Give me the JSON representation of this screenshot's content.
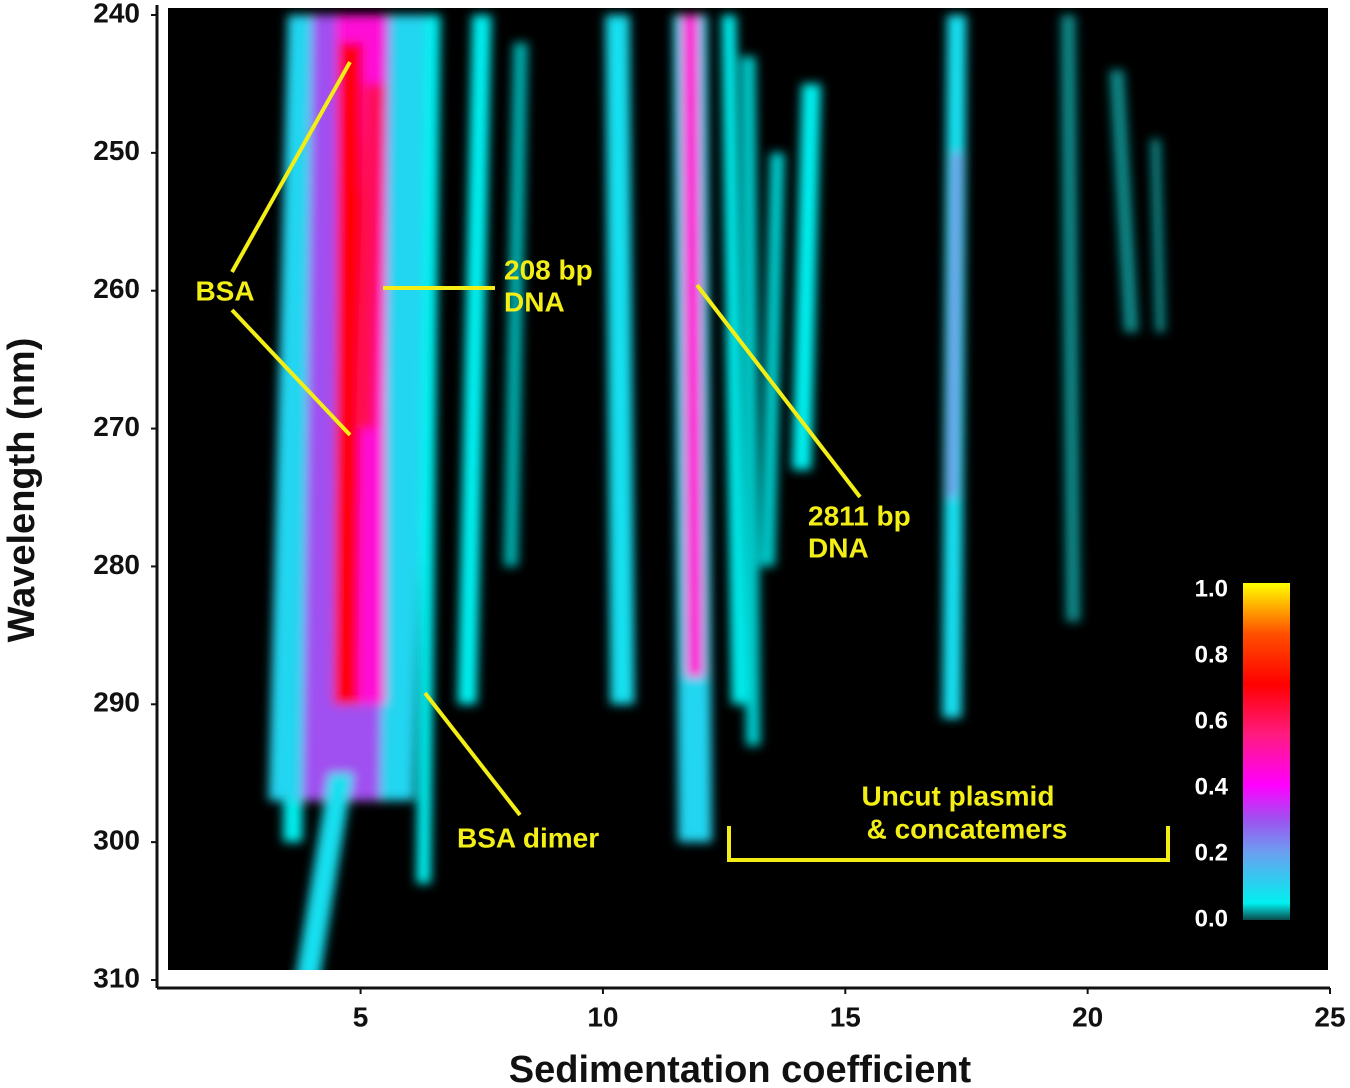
{
  "chart_data": {
    "type": "heatmap",
    "xlabel": "Sedimentation coefficient",
    "ylabel": "Wavelength (nm)",
    "xlim": [
      0.8,
      25
    ],
    "ylim": [
      240,
      310
    ],
    "xticks": [
      5,
      10,
      15,
      20,
      25
    ],
    "yticks": [
      240,
      250,
      260,
      270,
      280,
      290,
      300,
      310
    ],
    "colorbar": {
      "lim": [
        0,
        1
      ],
      "ticks": [
        {
          "value": 0,
          "label": "0.0"
        },
        0.2,
        0.4,
        0.6,
        0.8,
        {
          "value": 1,
          "label": "1.0"
        }
      ],
      "colorscale": [
        [
          0,
          "#0b4a4a"
        ],
        [
          0.05,
          "#00f0f0"
        ],
        [
          0.2,
          "#6aa0f0"
        ],
        [
          0.3,
          "#a050f0"
        ],
        [
          0.4,
          "#ff00ff"
        ],
        [
          0.55,
          "#ff1a80"
        ],
        [
          0.7,
          "#ff0000"
        ],
        [
          0.85,
          "#ff5000"
        ],
        [
          1,
          "#ffff00"
        ]
      ]
    },
    "streaks": [
      {
        "x": [
          3.7,
          3.6
        ],
        "y": [
          240,
          300
        ],
        "width": 0.4,
        "value": 0.05
      },
      {
        "x": [
          5.0,
          4.6
        ],
        "y": [
          240,
          297
        ],
        "width": 3.0,
        "value": 0.1
      },
      {
        "x": [
          4.8,
          4.6
        ],
        "y": [
          240,
          297
        ],
        "width": 1.6,
        "value": 0.3
      },
      {
        "x": [
          5.0,
          5.0
        ],
        "y": [
          240,
          290
        ],
        "width": 1.0,
        "value": 0.45
      },
      {
        "x": [
          4.8,
          4.7
        ],
        "y": [
          242,
          290
        ],
        "width": 0.5,
        "value": 0.7
      },
      {
        "x": [
          5.3,
          5.1
        ],
        "y": [
          245,
          270
        ],
        "width": 0.4,
        "value": 0.6
      },
      {
        "x": [
          4.6,
          3.9
        ],
        "y": [
          295,
          310
        ],
        "width": 0.5,
        "value": 0.08
      },
      {
        "x": [
          6.5,
          6.3
        ],
        "y": [
          240,
          303
        ],
        "width": 0.3,
        "value": 0.05
      },
      {
        "x": [
          7.5,
          7.2
        ],
        "y": [
          240,
          290
        ],
        "width": 0.4,
        "value": 0.05
      },
      {
        "x": [
          8.3,
          8.1
        ],
        "y": [
          242,
          280
        ],
        "width": 0.3,
        "value": 0.03
      },
      {
        "x": [
          10.3,
          10.4
        ],
        "y": [
          240,
          290
        ],
        "width": 0.5,
        "value": 0.08
      },
      {
        "x": [
          11.8,
          11.9
        ],
        "y": [
          240,
          300
        ],
        "width": 0.7,
        "value": 0.1
      },
      {
        "x": [
          11.8,
          11.9
        ],
        "y": [
          240,
          288
        ],
        "width": 0.35,
        "value": 0.45
      },
      {
        "x": [
          12.6,
          12.8
        ],
        "y": [
          240,
          290
        ],
        "width": 0.3,
        "value": 0.05
      },
      {
        "x": [
          13.0,
          13.1
        ],
        "y": [
          243,
          293
        ],
        "width": 0.3,
        "value": 0.04
      },
      {
        "x": [
          13.6,
          13.4
        ],
        "y": [
          250,
          280
        ],
        "width": 0.3,
        "value": 0.04
      },
      {
        "x": [
          14.3,
          14.1
        ],
        "y": [
          245,
          273
        ],
        "width": 0.4,
        "value": 0.05
      },
      {
        "x": [
          17.3,
          17.2
        ],
        "y": [
          240,
          291
        ],
        "width": 0.4,
        "value": 0.08
      },
      {
        "x": [
          17.3,
          17.2
        ],
        "y": [
          250,
          275
        ],
        "width": 0.15,
        "value": 0.25
      },
      {
        "x": [
          19.6,
          19.7
        ],
        "y": [
          240,
          284
        ],
        "width": 0.3,
        "value": 0.02
      },
      {
        "x": [
          20.6,
          20.9
        ],
        "y": [
          244,
          263
        ],
        "width": 0.3,
        "value": 0.02
      },
      {
        "x": [
          21.4,
          21.5
        ],
        "y": [
          249,
          263
        ],
        "width": 0.2,
        "value": 0.02
      }
    ],
    "annotations": [
      "BSA",
      "208 bp",
      "DNA",
      "2811 bp",
      "DNA",
      "BSA dimer",
      "Uncut plasmid",
      "& concatemers"
    ]
  }
}
